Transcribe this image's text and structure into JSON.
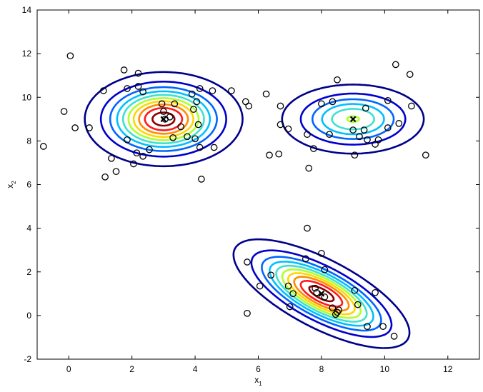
{
  "chart_data": {
    "type": "scatter",
    "title": "",
    "xlabel": {
      "base": "x",
      "sub": "1"
    },
    "ylabel": {
      "base": "x",
      "sub": "2"
    },
    "xlim": [
      -1,
      13
    ],
    "ylim": [
      -2,
      14
    ],
    "xticks": [
      0,
      2,
      4,
      6,
      8,
      10,
      12
    ],
    "yticks": [
      -2,
      0,
      2,
      4,
      6,
      8,
      10,
      12,
      14
    ],
    "grid": false,
    "legend": "none",
    "points": [
      [
        -0.8,
        7.75
      ],
      [
        0.05,
        11.9
      ],
      [
        -0.15,
        9.35
      ],
      [
        0.2,
        8.6
      ],
      [
        0.65,
        8.6
      ],
      [
        1.1,
        10.3
      ],
      [
        1.15,
        6.35
      ],
      [
        1.35,
        7.2
      ],
      [
        1.5,
        6.6
      ],
      [
        1.75,
        11.25
      ],
      [
        1.85,
        10.4
      ],
      [
        1.85,
        8.05
      ],
      [
        2.05,
        6.95
      ],
      [
        2.15,
        7.45
      ],
      [
        2.2,
        10.5
      ],
      [
        2.2,
        11.1
      ],
      [
        2.35,
        10.25
      ],
      [
        2.35,
        7.3
      ],
      [
        2.55,
        7.6
      ],
      [
        2.95,
        9.7
      ],
      [
        3.0,
        9.35
      ],
      [
        3.05,
        9.0
      ],
      [
        3.2,
        9.1
      ],
      [
        3.3,
        8.15
      ],
      [
        3.35,
        9.7
      ],
      [
        3.55,
        8.65
      ],
      [
        3.75,
        8.2
      ],
      [
        3.9,
        10.15
      ],
      [
        3.95,
        9.45
      ],
      [
        4.0,
        8.1
      ],
      [
        4.05,
        9.8
      ],
      [
        4.1,
        8.75
      ],
      [
        4.15,
        10.4
      ],
      [
        4.15,
        7.7
      ],
      [
        4.2,
        6.25
      ],
      [
        4.55,
        10.3
      ],
      [
        4.6,
        7.7
      ],
      [
        5.15,
        10.3
      ],
      [
        5.6,
        9.8
      ],
      [
        5.7,
        9.6
      ],
      [
        6.25,
        10.15
      ],
      [
        6.35,
        7.35
      ],
      [
        6.65,
        7.4
      ],
      [
        6.7,
        9.6
      ],
      [
        6.7,
        8.75
      ],
      [
        6.95,
        8.55
      ],
      [
        7.55,
        8.3
      ],
      [
        7.6,
        6.75
      ],
      [
        7.75,
        7.65
      ],
      [
        8.0,
        9.7
      ],
      [
        8.25,
        8.3
      ],
      [
        8.35,
        9.8
      ],
      [
        8.5,
        10.8
      ],
      [
        9.0,
        8.5
      ],
      [
        9.05,
        7.35
      ],
      [
        9.2,
        8.2
      ],
      [
        9.35,
        8.5
      ],
      [
        9.4,
        9.5
      ],
      [
        9.45,
        8.05
      ],
      [
        9.7,
        7.85
      ],
      [
        9.8,
        8.05
      ],
      [
        10.1,
        9.85
      ],
      [
        10.1,
        8.6
      ],
      [
        10.35,
        11.5
      ],
      [
        10.45,
        8.8
      ],
      [
        10.8,
        11.05
      ],
      [
        10.85,
        9.6
      ],
      [
        11.3,
        7.35
      ],
      [
        5.65,
        2.45
      ],
      [
        5.65,
        0.1
      ],
      [
        6.05,
        1.35
      ],
      [
        6.4,
        1.85
      ],
      [
        6.95,
        1.35
      ],
      [
        7.0,
        0.4
      ],
      [
        7.1,
        1.0
      ],
      [
        7.5,
        2.6
      ],
      [
        7.55,
        4.0
      ],
      [
        7.8,
        1.25
      ],
      [
        7.85,
        1.05
      ],
      [
        8.0,
        2.85
      ],
      [
        8.1,
        0.85
      ],
      [
        8.1,
        2.1
      ],
      [
        8.35,
        0.35
      ],
      [
        8.45,
        0.05
      ],
      [
        8.5,
        0.15
      ],
      [
        8.55,
        0.25
      ],
      [
        9.05,
        1.15
      ],
      [
        9.15,
        0.5
      ],
      [
        9.45,
        -0.5
      ],
      [
        9.7,
        1.05
      ],
      [
        9.95,
        -0.5
      ],
      [
        10.3,
        -0.95
      ]
    ],
    "centers": [
      [
        3.0,
        9.0
      ],
      [
        9.0,
        9.0
      ],
      [
        8.0,
        1.0
      ]
    ],
    "contour_colors": [
      "#00008b",
      "#0000cd",
      "#0066ff",
      "#00bfff",
      "#40e0d0",
      "#adff2f",
      "#ffd700",
      "#ff8c00",
      "#ff1a1a",
      "#8b0000"
    ]
  }
}
